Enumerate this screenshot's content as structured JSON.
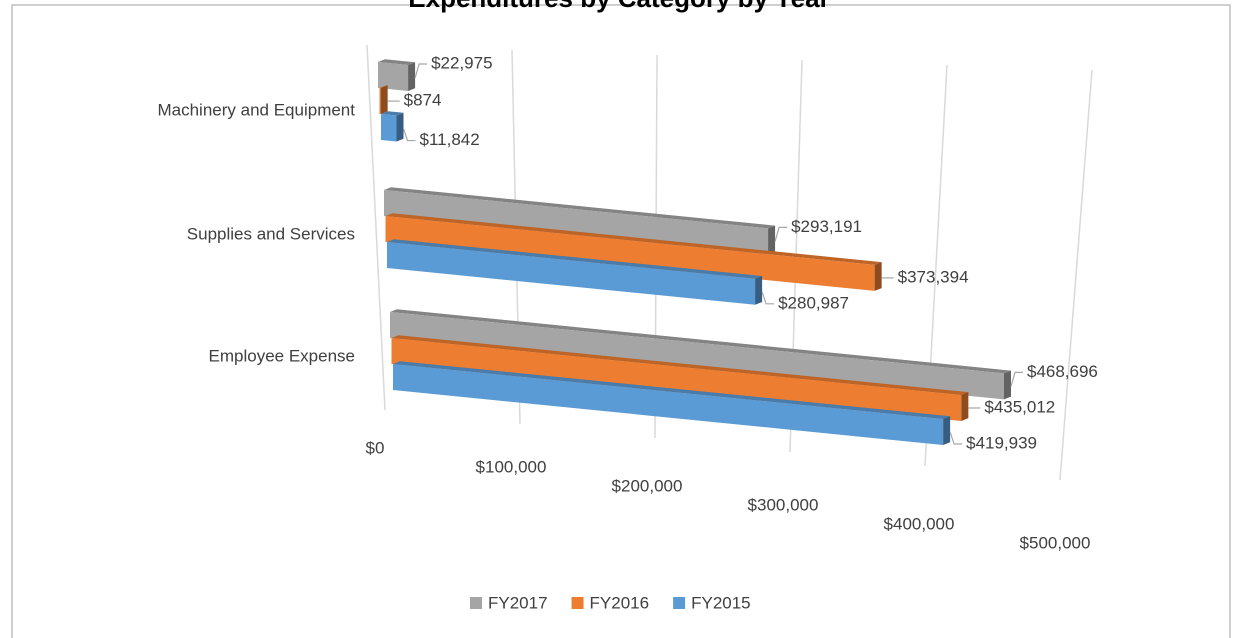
{
  "chart_data": {
    "type": "bar3d",
    "title": "Expenditures by Category by Year",
    "categories": [
      "Machinery and Equipment",
      "Supplies and Services",
      "Employee Expense"
    ],
    "series": [
      {
        "name": "FY2017",
        "color": "#a5a5a5",
        "values": [
          22975,
          293191,
          468696
        ],
        "value_labels": [
          "$22,975",
          "$293,191",
          "$468,696"
        ]
      },
      {
        "name": "FY2016",
        "color": "#ed7d31",
        "values": [
          874,
          373394,
          435012
        ],
        "value_labels": [
          "$874",
          "$373,394",
          "$435,012"
        ]
      },
      {
        "name": "FY2015",
        "color": "#5b9bd5",
        "values": [
          11842,
          280987,
          419939
        ],
        "value_labels": [
          "$11,842",
          "$280,987",
          "$419,939"
        ]
      }
    ],
    "xlim": [
      0,
      500000
    ],
    "xticks": [
      {
        "value": 0,
        "label": "$0"
      },
      {
        "value": 100000,
        "label": "$100,000"
      },
      {
        "value": 200000,
        "label": "$200,000"
      },
      {
        "value": 300000,
        "label": "$300,000"
      },
      {
        "value": 400000,
        "label": "$400,000"
      },
      {
        "value": 500000,
        "label": "$500,000"
      }
    ],
    "grid": true,
    "legend": "bottom"
  }
}
